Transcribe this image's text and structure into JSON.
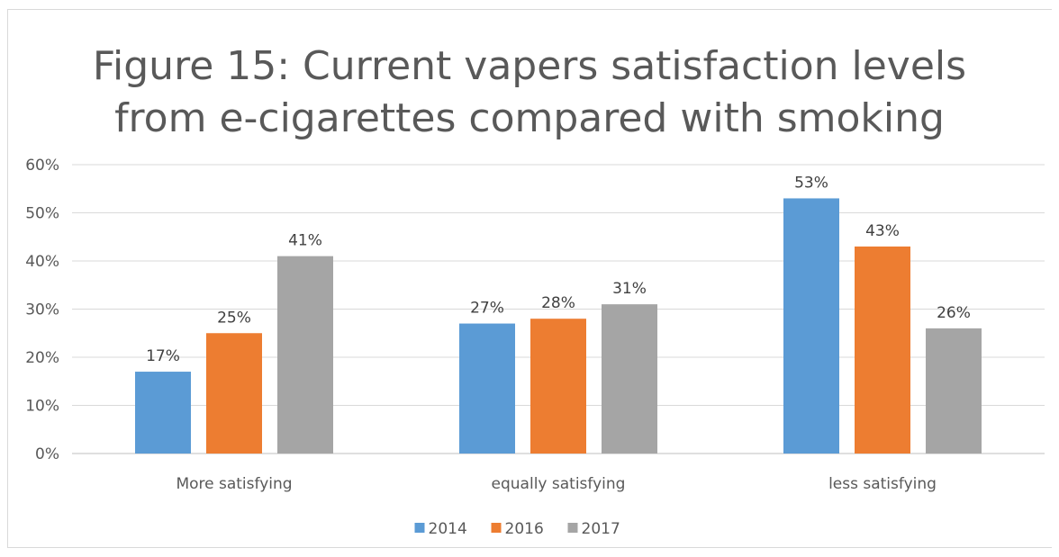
{
  "chart_data": {
    "type": "bar",
    "title_lines": [
      "Figure 15: Current vapers satisfaction levels",
      "from e-cigarettes compared with smoking"
    ],
    "categories": [
      "More satisfying",
      "equally satisfying",
      "less satisfying"
    ],
    "series": [
      {
        "name": "2014",
        "color": "#5b9bd5",
        "values": [
          17,
          27,
          53
        ]
      },
      {
        "name": "2016",
        "color": "#ed7d31",
        "values": [
          25,
          28,
          43
        ]
      },
      {
        "name": "2017",
        "color": "#a5a5a5",
        "values": [
          41,
          31,
          26
        ]
      }
    ],
    "y_ticks": [
      "0%",
      "10%",
      "20%",
      "30%",
      "40%",
      "50%",
      "60%"
    ],
    "ylim": [
      0,
      60
    ],
    "grid": true,
    "legend": "bottom",
    "data_label_suffix": "%"
  }
}
